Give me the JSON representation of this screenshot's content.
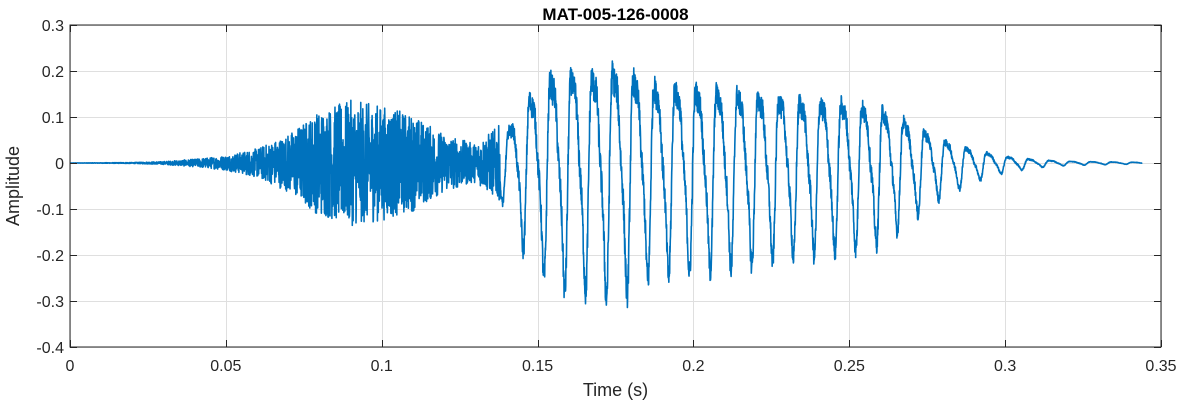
{
  "chart_data": {
    "type": "line",
    "title": "MAT-005-126-0008",
    "xlabel": "Time (s)",
    "ylabel": "Amplitude",
    "xlim": [
      0,
      0.35
    ],
    "ylim": [
      -0.4,
      0.3
    ],
    "xticks": [
      0,
      0.05,
      0.1,
      0.15,
      0.2,
      0.25,
      0.3,
      0.35
    ],
    "xtick_labels": [
      "0",
      "0.05",
      "0.1",
      "0.15",
      "0.2",
      "0.25",
      "0.3",
      "0.35"
    ],
    "yticks": [
      -0.4,
      -0.3,
      -0.2,
      -0.1,
      0,
      0.1,
      0.2,
      0.3
    ],
    "ytick_labels": [
      "-0.4",
      "-0.3",
      "-0.2",
      "-0.1",
      "0",
      "0.1",
      "0.2",
      "0.3"
    ],
    "grid": true,
    "legend": "none",
    "series": [
      {
        "color": "#0072BD",
        "duration": 0.344,
        "envelope": [
          {
            "x": 0.0,
            "y": 0.0
          },
          {
            "x": 0.02,
            "y": 0.001
          },
          {
            "x": 0.03,
            "y": 0.003
          },
          {
            "x": 0.04,
            "y": 0.008
          },
          {
            "x": 0.05,
            "y": 0.015
          },
          {
            "x": 0.06,
            "y": 0.03
          },
          {
            "x": 0.07,
            "y": 0.06
          },
          {
            "x": 0.08,
            "y": 0.11
          },
          {
            "x": 0.09,
            "y": 0.13
          },
          {
            "x": 0.1,
            "y": 0.12
          },
          {
            "x": 0.11,
            "y": 0.1
          },
          {
            "x": 0.12,
            "y": 0.06
          },
          {
            "x": 0.13,
            "y": 0.04
          },
          {
            "x": 0.14,
            "y": 0.09
          },
          {
            "x": 0.145,
            "y": 0.18
          },
          {
            "x": 0.155,
            "y": 0.27
          },
          {
            "x": 0.165,
            "y": 0.27
          },
          {
            "x": 0.175,
            "y": 0.29
          },
          {
            "x": 0.185,
            "y": 0.25
          },
          {
            "x": 0.2,
            "y": 0.23
          },
          {
            "x": 0.215,
            "y": 0.22
          },
          {
            "x": 0.23,
            "y": 0.2
          },
          {
            "x": 0.245,
            "y": 0.19
          },
          {
            "x": 0.26,
            "y": 0.17
          },
          {
            "x": 0.27,
            "y": 0.12
          },
          {
            "x": 0.28,
            "y": 0.07
          },
          {
            "x": 0.29,
            "y": 0.04
          },
          {
            "x": 0.3,
            "y": 0.02
          },
          {
            "x": 0.31,
            "y": 0.01
          },
          {
            "x": 0.32,
            "y": 0.005
          },
          {
            "x": 0.344,
            "y": 0.002
          }
        ]
      }
    ]
  }
}
